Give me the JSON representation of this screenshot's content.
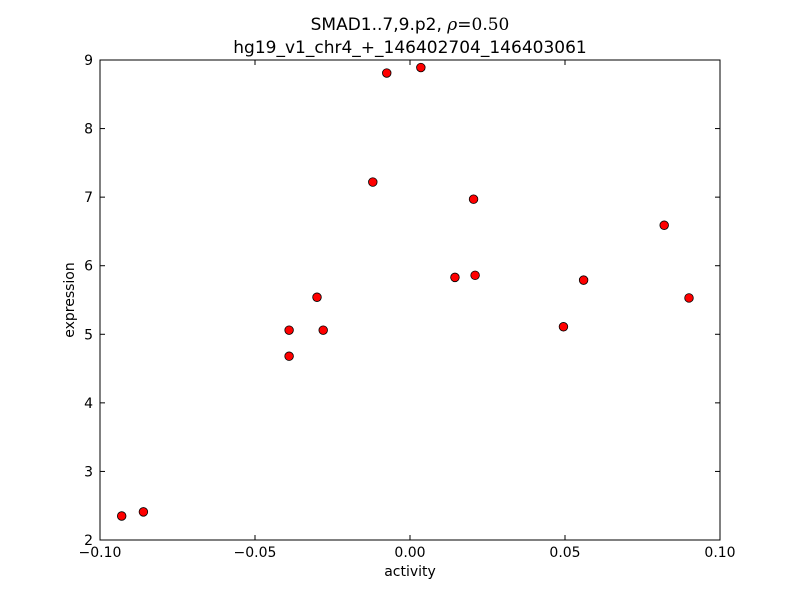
{
  "chart_data": {
    "type": "scatter",
    "title_line1_prefix": "SMAD1..7,9.p2, ",
    "title_rho_symbol": "ρ",
    "title_rho_value": "=0.50",
    "title_line2": "hg19_v1_chr4_+_146402704_146403061",
    "xlabel": "activity",
    "ylabel": "expression",
    "xlim": [
      -0.1,
      0.1
    ],
    "ylim": [
      2,
      9
    ],
    "x_ticks": [
      {
        "value": -0.1,
        "label": "−0.10"
      },
      {
        "value": -0.05,
        "label": "−0.05"
      },
      {
        "value": 0.0,
        "label": "0.00"
      },
      {
        "value": 0.05,
        "label": "0.05"
      },
      {
        "value": 0.1,
        "label": "0.10"
      }
    ],
    "y_ticks": [
      {
        "value": 2,
        "label": "2"
      },
      {
        "value": 3,
        "label": "3"
      },
      {
        "value": 4,
        "label": "4"
      },
      {
        "value": 5,
        "label": "5"
      },
      {
        "value": 6,
        "label": "6"
      },
      {
        "value": 7,
        "label": "7"
      },
      {
        "value": 8,
        "label": "8"
      },
      {
        "value": 9,
        "label": "9"
      }
    ],
    "grid": false,
    "marker_color": "#ff0000",
    "marker_edge_color": "#000000",
    "points": [
      {
        "x": -0.093,
        "y": 2.35
      },
      {
        "x": -0.086,
        "y": 2.41
      },
      {
        "x": -0.039,
        "y": 5.06
      },
      {
        "x": -0.039,
        "y": 4.68
      },
      {
        "x": -0.03,
        "y": 5.54
      },
      {
        "x": -0.028,
        "y": 5.06
      },
      {
        "x": -0.012,
        "y": 7.22
      },
      {
        "x": -0.0075,
        "y": 8.81
      },
      {
        "x": 0.0035,
        "y": 8.89
      },
      {
        "x": 0.0145,
        "y": 5.83
      },
      {
        "x": 0.0205,
        "y": 6.97
      },
      {
        "x": 0.021,
        "y": 5.86
      },
      {
        "x": 0.0495,
        "y": 5.11
      },
      {
        "x": 0.056,
        "y": 5.79
      },
      {
        "x": 0.082,
        "y": 6.59
      },
      {
        "x": 0.09,
        "y": 5.53
      }
    ]
  }
}
